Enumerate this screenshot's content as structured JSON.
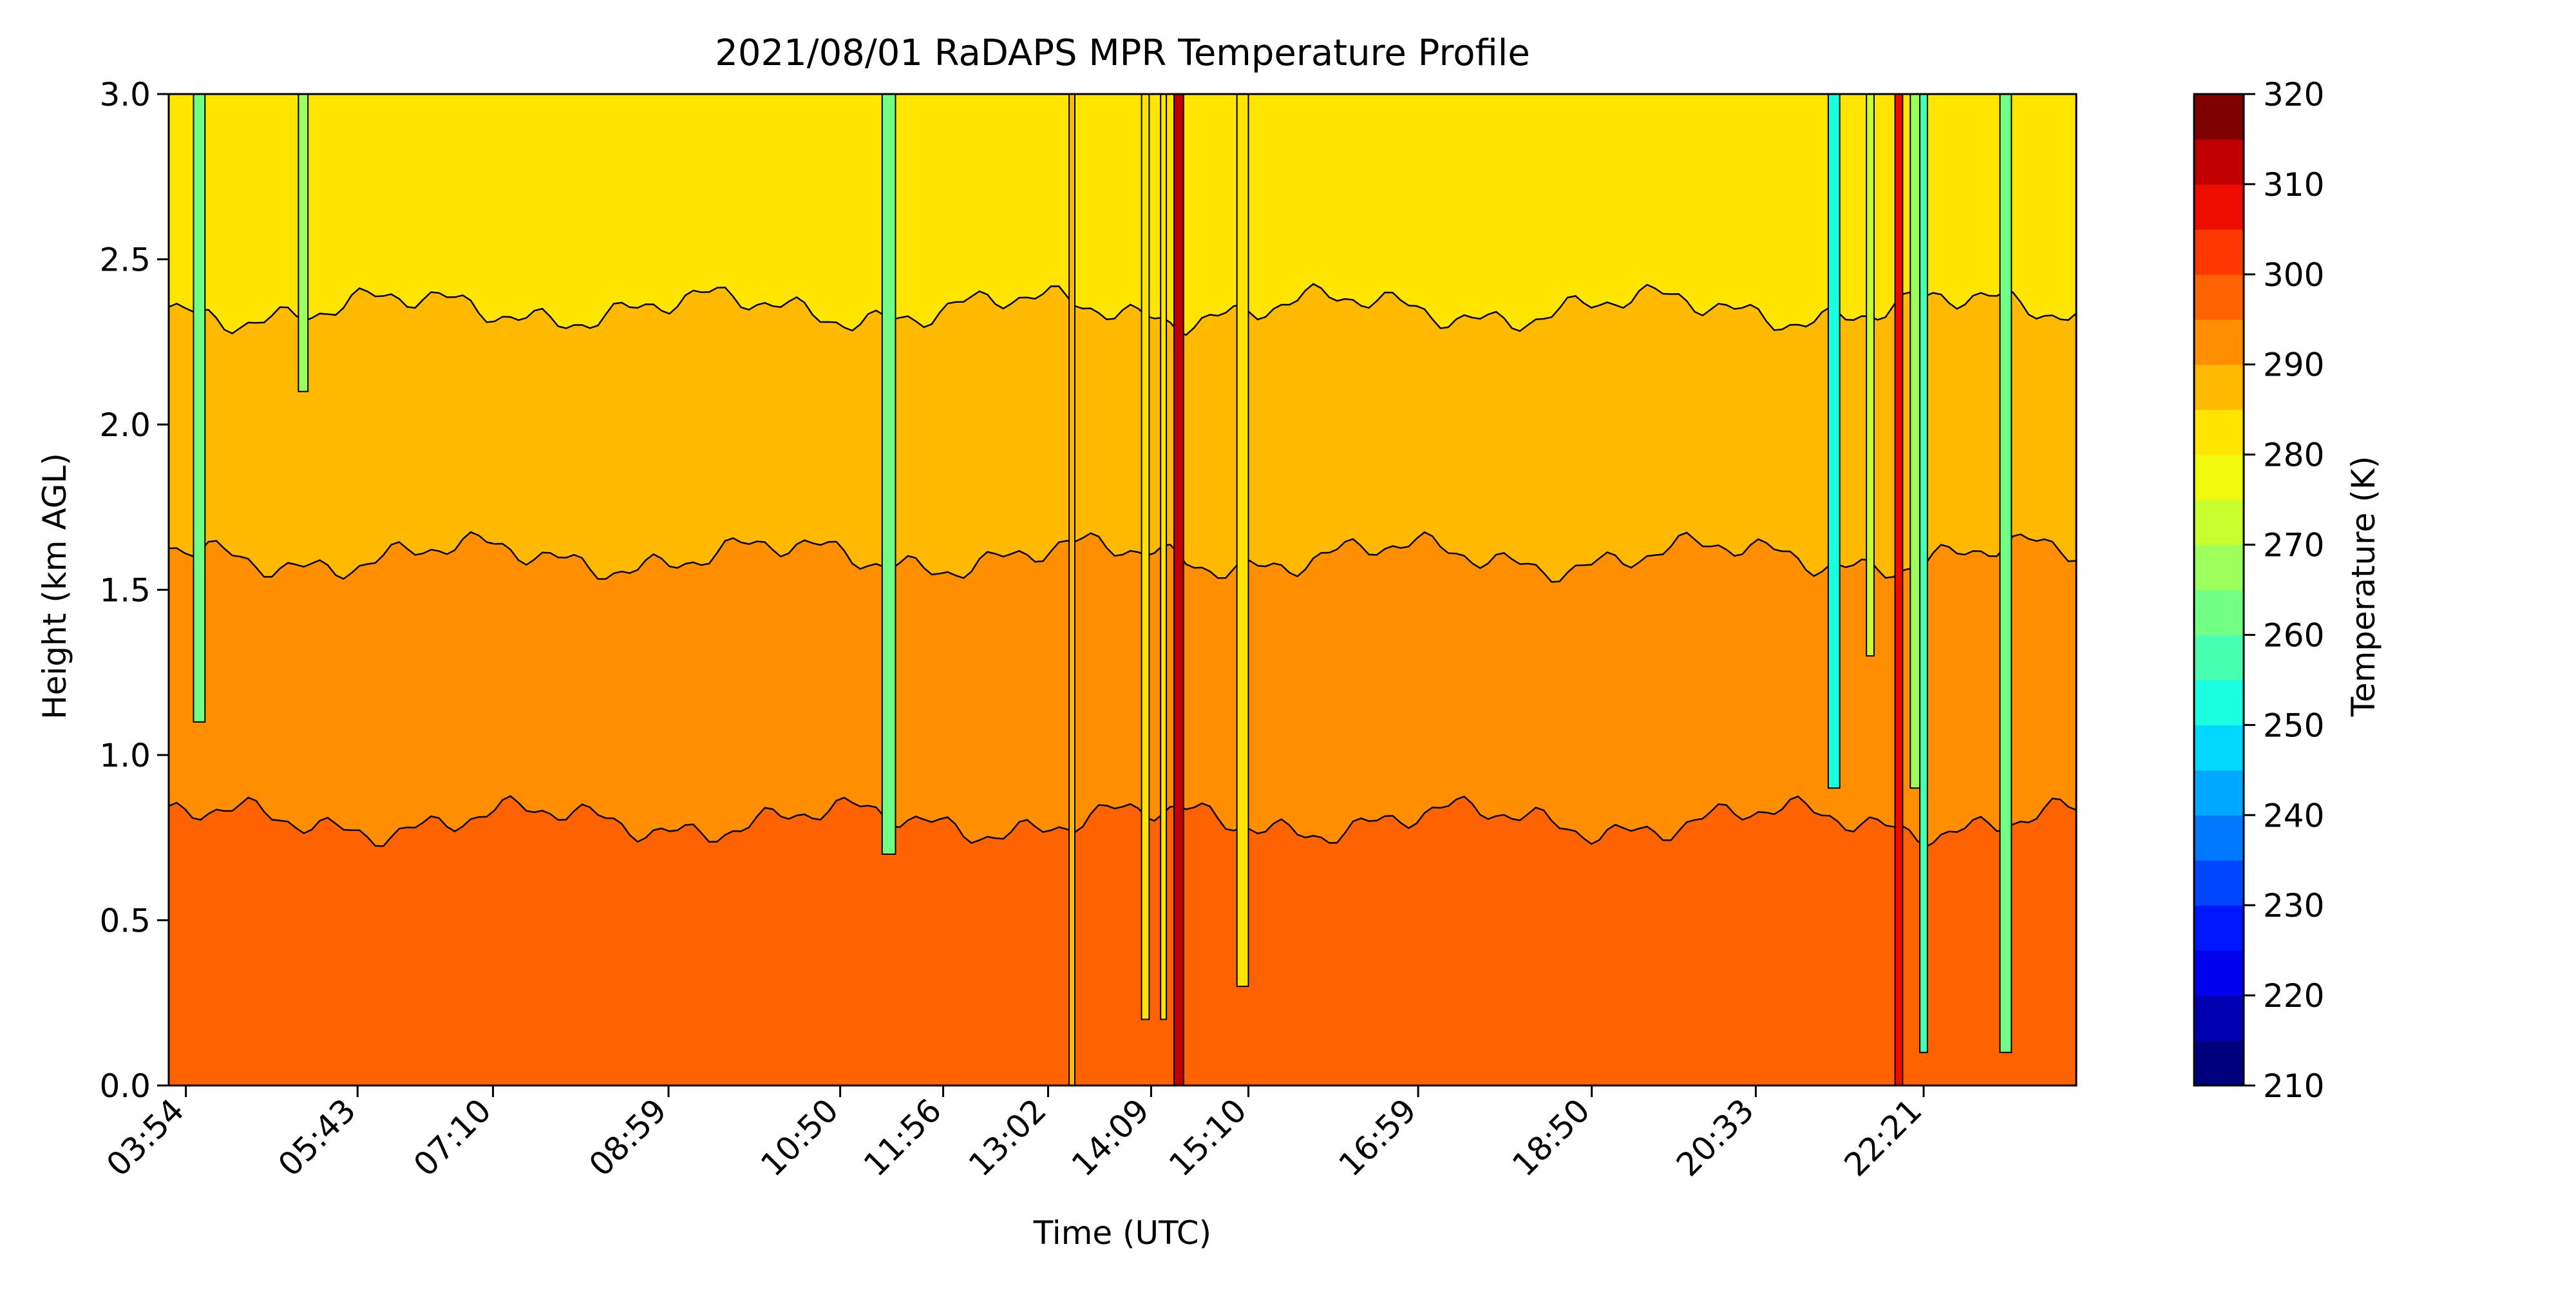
{
  "chart_data": {
    "type": "heatmap",
    "subtype": "filled-contour",
    "title": "2021/08/01 RaDAPS MPR Temperature Profile",
    "xlabel": "Time (UTC)",
    "ylabel": "Height (km AGL)",
    "colorbar_label": "Temperature (K)",
    "colormap": "jet",
    "x_ticks": [
      "03:54",
      "05:43",
      "07:10",
      "08:59",
      "10:50",
      "11:56",
      "13:02",
      "14:09",
      "15:10",
      "16:59",
      "18:50",
      "20:33",
      "22:21"
    ],
    "y_ticks": [
      "0.0",
      "0.5",
      "1.0",
      "1.5",
      "2.0",
      "2.5",
      "3.0"
    ],
    "ylim": [
      0,
      3.0
    ],
    "colorbar_ticks": [
      "210",
      "220",
      "230",
      "240",
      "250",
      "260",
      "270",
      "280",
      "290",
      "300",
      "310",
      "320"
    ],
    "colorbar_range": [
      210,
      320
    ],
    "colorbar_levels": [
      210,
      215,
      220,
      225,
      230,
      235,
      240,
      245,
      250,
      255,
      260,
      265,
      270,
      275,
      280,
      285,
      290,
      295,
      300,
      305,
      310,
      315,
      320
    ],
    "colorbar_colors": [
      "#00007f",
      "#0000b3",
      "#0000ec",
      "#0016ff",
      "#0046ff",
      "#0078ff",
      "#00a8ff",
      "#00d8ff",
      "#1affe0",
      "#46ffb0",
      "#71ff86",
      "#9cff5b",
      "#c7ff2f",
      "#f0f90b",
      "#ffe500",
      "#ffb900",
      "#ff8e00",
      "#ff6200",
      "#ff3700",
      "#ee0c00",
      "#c00000",
      "#7f0000"
    ],
    "profile_layers": [
      {
        "temperature_range": [
          295,
          300
        ],
        "height_range_km": [
          0.0,
          0.8
        ]
      },
      {
        "temperature_range": [
          290,
          295
        ],
        "height_range_km": [
          0.8,
          1.6
        ]
      },
      {
        "temperature_range": [
          285,
          290
        ],
        "height_range_km": [
          1.6,
          2.35
        ]
      },
      {
        "temperature_range": [
          280,
          285
        ],
        "height_range_km": [
          2.35,
          3.0
        ]
      }
    ]
  }
}
